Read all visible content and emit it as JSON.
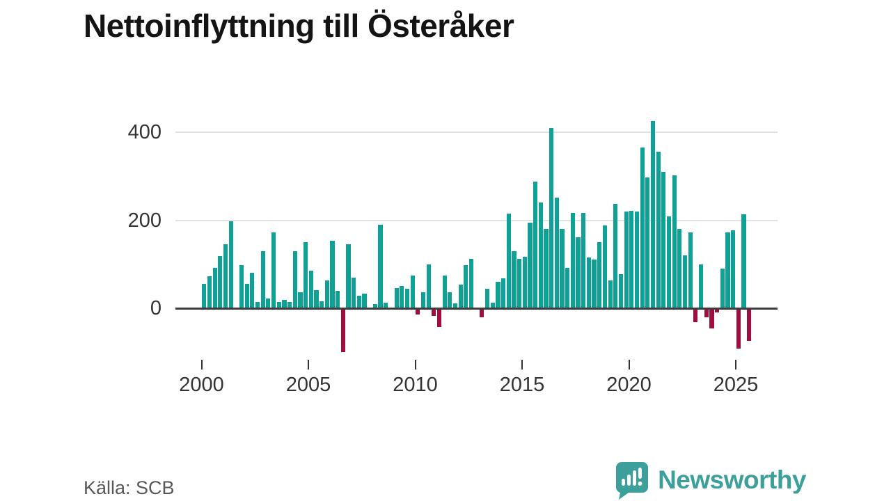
{
  "header": {
    "title": "Nettoinflyttning till Österåker"
  },
  "footer": {
    "source": "Källa: SCB"
  },
  "branding": {
    "wordmark": "Newsworthy",
    "logo_icon": "speech-bubble-bar-chart",
    "color": "#3d9f99"
  },
  "chart_data": {
    "type": "bar",
    "title": "Nettoinflyttning till Österåker",
    "xlabel": "",
    "ylabel": "",
    "frequency": "quarterly",
    "start_quarter": "2000-Q1",
    "end_quarter": "2025-Q3",
    "x_tick_labels": [
      "2000",
      "2005",
      "2010",
      "2015",
      "2020",
      "2025"
    ],
    "y_ticks": [
      0,
      200,
      400
    ],
    "y_tick_labels": [
      "0",
      "200",
      "400"
    ],
    "ylim": [
      -125,
      440
    ],
    "grid": "horizontal-only",
    "legend": "none",
    "colors": {
      "positive": "#10a196",
      "negative": "#a10d3e",
      "grid": "#e2e2e2",
      "axis": "#3d3d3d"
    },
    "quarters": [
      "2000-Q1",
      "2000-Q2",
      "2000-Q3",
      "2000-Q4",
      "2001-Q1",
      "2001-Q2",
      "2001-Q3",
      "2001-Q4",
      "2002-Q1",
      "2002-Q2",
      "2002-Q3",
      "2002-Q4",
      "2003-Q1",
      "2003-Q2",
      "2003-Q3",
      "2003-Q4",
      "2004-Q1",
      "2004-Q2",
      "2004-Q3",
      "2004-Q4",
      "2005-Q1",
      "2005-Q2",
      "2005-Q3",
      "2005-Q4",
      "2006-Q1",
      "2006-Q2",
      "2006-Q3",
      "2006-Q4",
      "2007-Q1",
      "2007-Q2",
      "2007-Q3",
      "2007-Q4",
      "2008-Q1",
      "2008-Q2",
      "2008-Q3",
      "2008-Q4",
      "2009-Q1",
      "2009-Q2",
      "2009-Q3",
      "2009-Q4",
      "2010-Q1",
      "2010-Q2",
      "2010-Q3",
      "2010-Q4",
      "2011-Q1",
      "2011-Q2",
      "2011-Q3",
      "2011-Q4",
      "2012-Q1",
      "2012-Q2",
      "2012-Q3",
      "2012-Q4",
      "2013-Q1",
      "2013-Q2",
      "2013-Q3",
      "2013-Q4",
      "2014-Q1",
      "2014-Q2",
      "2014-Q3",
      "2014-Q4",
      "2015-Q1",
      "2015-Q2",
      "2015-Q3",
      "2015-Q4",
      "2016-Q1",
      "2016-Q2",
      "2016-Q3",
      "2016-Q4",
      "2017-Q1",
      "2017-Q2",
      "2017-Q3",
      "2017-Q4",
      "2018-Q1",
      "2018-Q2",
      "2018-Q3",
      "2018-Q4",
      "2019-Q1",
      "2019-Q2",
      "2019-Q3",
      "2019-Q4",
      "2020-Q1",
      "2020-Q2",
      "2020-Q3",
      "2020-Q4",
      "2021-Q1",
      "2021-Q2",
      "2021-Q3",
      "2021-Q4",
      "2022-Q1",
      "2022-Q2",
      "2022-Q3",
      "2022-Q4",
      "2023-Q1",
      "2023-Q2",
      "2023-Q3",
      "2023-Q4",
      "2024-Q1",
      "2024-Q2",
      "2024-Q3",
      "2024-Q4",
      "2025-Q1",
      "2025-Q2",
      "2025-Q3"
    ],
    "values": [
      56,
      73,
      92,
      118,
      146,
      197,
      0,
      98,
      55,
      81,
      15,
      130,
      22,
      172,
      15,
      19,
      14,
      130,
      37,
      150,
      86,
      41,
      16,
      63,
      153,
      40,
      -100,
      146,
      69,
      29,
      33,
      0,
      10,
      190,
      12,
      0,
      46,
      51,
      45,
      75,
      -14,
      37,
      100,
      -18,
      -42,
      75,
      37,
      11,
      53,
      98,
      112,
      0,
      -21,
      44,
      13,
      60,
      68,
      215,
      130,
      112,
      117,
      195,
      288,
      240,
      180,
      410,
      252,
      180,
      92,
      217,
      161,
      217,
      115,
      111,
      150,
      188,
      63,
      237,
      78,
      219,
      222,
      220,
      365,
      298,
      425,
      355,
      310,
      208,
      302,
      181,
      120,
      173,
      -32,
      99,
      -20,
      -46,
      -9,
      90,
      173,
      177,
      -91,
      213,
      -75
    ]
  }
}
